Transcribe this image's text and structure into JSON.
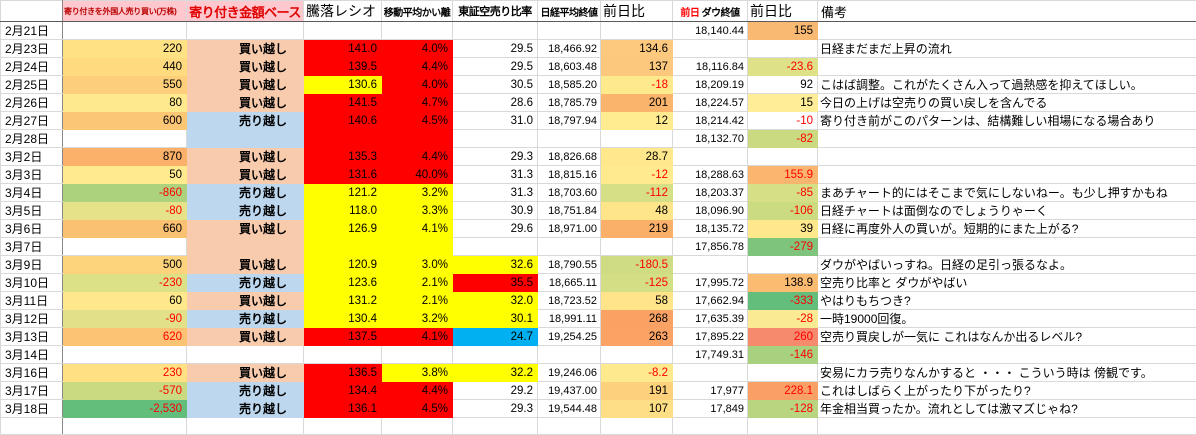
{
  "palette": {
    "cell_red": "#FF0000",
    "cell_yellow": "#FFFF00",
    "cell_cyan": "#00B0F0",
    "cell_peach": "#F8CBAD",
    "cell_blue": "#BDD7EE",
    "header_pink": "#FFC7CE",
    "negative_text": "#FF0000",
    "scale_green": "#63BE7B",
    "scale_orange": "#FBB169"
  },
  "header": {
    "col_foreign": "寄り付きを外国人売り買い(万株)",
    "col_amount_base": "寄り付き金額ベース",
    "col_ratio": "騰落レシオ",
    "col_ma_dev": "移動平均かい離",
    "col_short_ratio": "東証空売り比率",
    "col_nikkei_close": "日経平均終値",
    "col_nikkei_chg": "前日比",
    "col_dow_prev": "前日",
    "col_dow_close": "ダウ終値",
    "col_dow_chg": "前日比",
    "col_remarks": "備考"
  },
  "rows": [
    {
      "date": "2月21日",
      "foreign": {
        "v": "",
        "bg": "",
        "red": false
      },
      "side": {
        "v": "",
        "bg": ""
      },
      "ratio": {
        "v": "",
        "bg": ""
      },
      "ma": {
        "v": "",
        "bg": ""
      },
      "short": {
        "v": "",
        "bg": ""
      },
      "close": "",
      "chg": {
        "v": "",
        "bg": "",
        "red": false
      },
      "dow": "18,140.44",
      "dowchg": {
        "v": "155",
        "bg": "#FAB973",
        "red": false
      },
      "remark": ""
    },
    {
      "date": "2月23日",
      "foreign": {
        "v": "220",
        "bg": "#FFE284",
        "red": false
      },
      "side": {
        "v": "買い越し",
        "bg": "#F8CBAD"
      },
      "ratio": {
        "v": "141.0",
        "bg": "#FF0000"
      },
      "ma": {
        "v": "4.0%",
        "bg": "#FF0000"
      },
      "short": {
        "v": "29.5",
        "bg": ""
      },
      "close": "18,466.92",
      "chg": {
        "v": "134.6",
        "bg": "#FCC97E",
        "red": false
      },
      "dow": "",
      "dowchg": {
        "v": "",
        "bg": "",
        "red": false
      },
      "remark": "日経まだまだ上昇の流れ"
    },
    {
      "date": "2月24日",
      "foreign": {
        "v": "440",
        "bg": "#FFDA7E",
        "red": false
      },
      "side": {
        "v": "買い越し",
        "bg": "#F8CBAD"
      },
      "ratio": {
        "v": "139.5",
        "bg": "#FF0000"
      },
      "ma": {
        "v": "4.4%",
        "bg": "#FF0000"
      },
      "short": {
        "v": "29.5",
        "bg": ""
      },
      "close": "18,603.48",
      "chg": {
        "v": "137",
        "bg": "#FCC87D",
        "red": false
      },
      "dow": "18,116.84",
      "dowchg": {
        "v": "-23.6",
        "bg": "#DFE189",
        "red": true
      },
      "remark": ""
    },
    {
      "date": "2月25日",
      "foreign": {
        "v": "550",
        "bg": "#FECF7A",
        "red": false
      },
      "side": {
        "v": "買い越し",
        "bg": "#F8CBAD"
      },
      "ratio": {
        "v": "130.6",
        "bg": "#FFFF00"
      },
      "ma": {
        "v": "4.0%",
        "bg": "#FF0000"
      },
      "short": {
        "v": "30.5",
        "bg": ""
      },
      "close": "18,585.20",
      "chg": {
        "v": "-18",
        "bg": "#FFE98D",
        "red": true
      },
      "dow": "18,209.19",
      "dowchg": {
        "v": "92",
        "bg": "",
        "red": false
      },
      "remark": "こはば調整。これがたくさん入って過熱感を抑えてほしい。"
    },
    {
      "date": "2月26日",
      "foreign": {
        "v": "80",
        "bg": "#FFE98D",
        "red": false
      },
      "side": {
        "v": "買い越し",
        "bg": "#F8CBAD"
      },
      "ratio": {
        "v": "141.5",
        "bg": "#FF0000"
      },
      "ma": {
        "v": "4.7%",
        "bg": "#FF0000"
      },
      "short": {
        "v": "28.6",
        "bg": ""
      },
      "close": "18,785.79",
      "chg": {
        "v": "201",
        "bg": "#FBB46C",
        "red": false
      },
      "dow": "18,224.57",
      "dowchg": {
        "v": "15",
        "bg": "#FFEE97",
        "red": false
      },
      "remark": "今日の上げは空売りの買い戻しを含んでる"
    },
    {
      "date": "2月27日",
      "foreign": {
        "v": "600",
        "bg": "#FCC775",
        "red": false
      },
      "side": {
        "v": "売り越し",
        "bg": "#BDD7EE"
      },
      "ratio": {
        "v": "140.6",
        "bg": "#FF0000"
      },
      "ma": {
        "v": "4.5%",
        "bg": "#FF0000"
      },
      "short": {
        "v": "31.0",
        "bg": ""
      },
      "close": "18,797.94",
      "chg": {
        "v": "12",
        "bg": "#FFEC90",
        "red": false
      },
      "dow": "18,214.42",
      "dowchg": {
        "v": "-10",
        "bg": "",
        "red": true
      },
      "remark": "寄り付き前がこのパターンは、結構難しい相場になる場合あり"
    },
    {
      "date": "2月28日",
      "foreign": {
        "v": "",
        "bg": "",
        "red": false
      },
      "side": {
        "v": "",
        "bg": "#BDD7EE"
      },
      "ratio": {
        "v": "",
        "bg": "#FF0000"
      },
      "ma": {
        "v": "",
        "bg": "#FF0000"
      },
      "short": {
        "v": "",
        "bg": ""
      },
      "close": "",
      "chg": {
        "v": "",
        "bg": "",
        "red": false
      },
      "dow": "18,132.70",
      "dowchg": {
        "v": "-82",
        "bg": "#C9DA81",
        "red": true
      },
      "remark": ""
    },
    {
      "date": "3月2日",
      "foreign": {
        "v": "870",
        "bg": "#FBB169",
        "red": false
      },
      "side": {
        "v": "買い越し",
        "bg": "#F8CBAD"
      },
      "ratio": {
        "v": "135.3",
        "bg": "#FF0000"
      },
      "ma": {
        "v": "4.4%",
        "bg": "#FF0000"
      },
      "short": {
        "v": "29.3",
        "bg": ""
      },
      "close": "18,826.68",
      "chg": {
        "v": "28.7",
        "bg": "#FFE88C",
        "red": false
      },
      "dow": "",
      "dowchg": {
        "v": "",
        "bg": "",
        "red": false
      },
      "remark": ""
    },
    {
      "date": "3月3日",
      "foreign": {
        "v": "50",
        "bg": "#FFEA8E",
        "red": false
      },
      "side": {
        "v": "買い越し",
        "bg": "#F8CBAD"
      },
      "ratio": {
        "v": "131.6",
        "bg": "#FF0000"
      },
      "ma": {
        "v": "40.0%",
        "bg": "#FF0000"
      },
      "short": {
        "v": "31.3",
        "bg": ""
      },
      "close": "18,815.16",
      "chg": {
        "v": "-12",
        "bg": "#FFEA8E",
        "red": true
      },
      "dow": "18,288.63",
      "dowchg": {
        "v": "155.9",
        "bg": "#FAB56F",
        "red": true
      },
      "remark": ""
    },
    {
      "date": "3月4日",
      "foreign": {
        "v": "-860",
        "bg": "#ACD27E",
        "red": true
      },
      "side": {
        "v": "売り越し",
        "bg": "#BDD7EE"
      },
      "ratio": {
        "v": "121.2",
        "bg": "#FFFF00"
      },
      "ma": {
        "v": "3.2%",
        "bg": "#FFFF00"
      },
      "short": {
        "v": "31.3",
        "bg": ""
      },
      "close": "18,703.60",
      "chg": {
        "v": "-112",
        "bg": "#D7DF86",
        "red": true
      },
      "dow": "18,203.37",
      "dowchg": {
        "v": "-85",
        "bg": "#D6DE86",
        "red": true
      },
      "remark": "まあチャート的にはそこまで気にしないねー。も少し押すかもね"
    },
    {
      "date": "3月5日",
      "foreign": {
        "v": "-80",
        "bg": "#E5E28A",
        "red": true
      },
      "side": {
        "v": "売り越し",
        "bg": "#BDD7EE"
      },
      "ratio": {
        "v": "118.0",
        "bg": "#FFFF00"
      },
      "ma": {
        "v": "3.3%",
        "bg": "#FFFF00"
      },
      "short": {
        "v": "30.9",
        "bg": ""
      },
      "close": "18,751.84",
      "chg": {
        "v": "48",
        "bg": "#FFE58A",
        "red": false
      },
      "dow": "18,096.90",
      "dowchg": {
        "v": "-106",
        "bg": "#CBDB81",
        "red": true
      },
      "remark": "日経チャートは面倒なのでしょうりゃーく"
    },
    {
      "date": "3月6日",
      "foreign": {
        "v": "660",
        "bg": "#FBC172",
        "red": false
      },
      "side": {
        "v": "買い越し",
        "bg": "#F8CBAD"
      },
      "ratio": {
        "v": "126.9",
        "bg": "#FFFF00"
      },
      "ma": {
        "v": "4.1%",
        "bg": "#FFFF00"
      },
      "short": {
        "v": "29.6",
        "bg": ""
      },
      "close": "18,971.00",
      "chg": {
        "v": "219",
        "bg": "#FBB06A",
        "red": false
      },
      "dow": "18,135.72",
      "dowchg": {
        "v": "39",
        "bg": "#FFE78B",
        "red": false
      },
      "remark": "日経に再度外人の買いが。短期的にまた上がる?"
    },
    {
      "date": "3月7日",
      "foreign": {
        "v": "",
        "bg": "",
        "red": false
      },
      "side": {
        "v": "",
        "bg": "#F8CBAD"
      },
      "ratio": {
        "v": "",
        "bg": "#FFFF00"
      },
      "ma": {
        "v": "",
        "bg": "#FFFF00"
      },
      "short": {
        "v": "",
        "bg": ""
      },
      "close": "",
      "chg": {
        "v": "",
        "bg": "",
        "red": false
      },
      "dow": "17,856.78",
      "dowchg": {
        "v": "-279",
        "bg": "#7EC47C",
        "red": true
      },
      "remark": ""
    },
    {
      "date": "3月9日",
      "foreign": {
        "v": "500",
        "bg": "#FDD47C",
        "red": false
      },
      "side": {
        "v": "買い越し",
        "bg": "#F8CBAD"
      },
      "ratio": {
        "v": "120.9",
        "bg": "#FFFF00"
      },
      "ma": {
        "v": "3.0%",
        "bg": "#FFFF00"
      },
      "short": {
        "v": "32.6",
        "bg": "#FFFF00"
      },
      "close": "18,790.55",
      "chg": {
        "v": "-180.5",
        "bg": "#CFDC83",
        "red": true
      },
      "dow": "",
      "dowchg": {
        "v": "",
        "bg": "",
        "red": false
      },
      "remark": "ダウがやばいっすね。日経の足引っ張るなよ。"
    },
    {
      "date": "3月10日",
      "foreign": {
        "v": "-230",
        "bg": "#DCE087",
        "red": true
      },
      "side": {
        "v": "売り越し",
        "bg": "#BDD7EE"
      },
      "ratio": {
        "v": "123.6",
        "bg": "#FFFF00"
      },
      "ma": {
        "v": "2.1%",
        "bg": "#FFFF00"
      },
      "short": {
        "v": "35.5",
        "bg": "#FF0000"
      },
      "close": "18,665.11",
      "chg": {
        "v": "-125",
        "bg": "#D4DE85",
        "red": true
      },
      "dow": "17,995.72",
      "dowchg": {
        "v": "138.9",
        "bg": "#FBBB71",
        "red": false
      },
      "remark": "空売り比率と ダウがやばい"
    },
    {
      "date": "3月11日",
      "foreign": {
        "v": "60",
        "bg": "#FFE88B",
        "red": false
      },
      "side": {
        "v": "買い越し",
        "bg": "#F8CBAD"
      },
      "ratio": {
        "v": "131.2",
        "bg": "#FFFF00"
      },
      "ma": {
        "v": "2.1%",
        "bg": "#FFFF00"
      },
      "short": {
        "v": "32.0",
        "bg": "#FFFF00"
      },
      "close": "18,723.52",
      "chg": {
        "v": "58",
        "bg": "#FFE48A",
        "red": false
      },
      "dow": "17,662.94",
      "dowchg": {
        "v": "-333",
        "bg": "#63BE7B",
        "red": true
      },
      "remark": "やはりもちつき?"
    },
    {
      "date": "3月12日",
      "foreign": {
        "v": "-90",
        "bg": "#E2E189",
        "red": true
      },
      "side": {
        "v": "売り越し",
        "bg": "#BDD7EE"
      },
      "ratio": {
        "v": "130.4",
        "bg": "#FFFF00"
      },
      "ma": {
        "v": "3.2%",
        "bg": "#FFFF00"
      },
      "short": {
        "v": "30.1",
        "bg": "#FFFF00"
      },
      "close": "18,991.11",
      "chg": {
        "v": "268",
        "bg": "#FAA263",
        "red": false
      },
      "dow": "17,635.39",
      "dowchg": {
        "v": "-28",
        "bg": "#FAEA93",
        "red": true
      },
      "remark": "一時19000回復。"
    },
    {
      "date": "3月13日",
      "foreign": {
        "v": "620",
        "bg": "#FBC373",
        "red": true
      },
      "side": {
        "v": "買い越し",
        "bg": "#F8CBAD"
      },
      "ratio": {
        "v": "137.5",
        "bg": "#FF0000"
      },
      "ma": {
        "v": "4.1%",
        "bg": "#FF0000"
      },
      "short": {
        "v": "24.7",
        "bg": "#00B0F0"
      },
      "close": "19,254.25",
      "chg": {
        "v": "263",
        "bg": "#FAA364",
        "red": false
      },
      "dow": "17,895.22",
      "dowchg": {
        "v": "260",
        "bg": "#F58A6D",
        "red": true
      },
      "remark": "空売り買戻しが一気に これはなんか出るレベル?"
    },
    {
      "date": "3月14日",
      "foreign": {
        "v": "",
        "bg": "",
        "red": false
      },
      "side": {
        "v": "",
        "bg": ""
      },
      "ratio": {
        "v": "",
        "bg": ""
      },
      "ma": {
        "v": "",
        "bg": ""
      },
      "short": {
        "v": "",
        "bg": ""
      },
      "close": "",
      "chg": {
        "v": "",
        "bg": "",
        "red": false
      },
      "dow": "17,749.31",
      "dowchg": {
        "v": "-146",
        "bg": "#A7D07F",
        "red": true
      },
      "remark": ""
    },
    {
      "date": "3月16日",
      "foreign": {
        "v": "230",
        "bg": "#FFE183",
        "red": true
      },
      "side": {
        "v": "買い越し",
        "bg": "#F8CBAD"
      },
      "ratio": {
        "v": "136.5",
        "bg": "#FF0000"
      },
      "ma": {
        "v": "3.8%",
        "bg": "#FFFF00"
      },
      "short": {
        "v": "32.2",
        "bg": "#FFFF00"
      },
      "close": "19,246.06",
      "chg": {
        "v": "-8.2",
        "bg": "#FEE98D",
        "red": true
      },
      "dow": "",
      "dowchg": {
        "v": "",
        "bg": "",
        "red": false
      },
      "remark": "安易にカラ売りなんかすると ・・・ こういう時は 傍観です。"
    },
    {
      "date": "3月17日",
      "foreign": {
        "v": "-570",
        "bg": "#C9DA81",
        "red": true
      },
      "side": {
        "v": "売り越し",
        "bg": "#BDD7EE"
      },
      "ratio": {
        "v": "134.4",
        "bg": "#FF0000"
      },
      "ma": {
        "v": "4.4%",
        "bg": "#FF0000"
      },
      "short": {
        "v": "29.2",
        "bg": ""
      },
      "close": "19,437.00",
      "chg": {
        "v": "191",
        "bg": "#FDD17B",
        "red": false
      },
      "dow": "17,977",
      "dowchg": {
        "v": "228.1",
        "bg": "#F9A066",
        "red": true
      },
      "remark": "これはしばらく上がったり下がったり?"
    },
    {
      "date": "3月18日",
      "foreign": {
        "v": "-2,530",
        "bg": "#63BE7B",
        "red": true
      },
      "side": {
        "v": "売り越し",
        "bg": "#BDD7EE"
      },
      "ratio": {
        "v": "136.1",
        "bg": "#FF0000"
      },
      "ma": {
        "v": "4.5%",
        "bg": "#FF0000"
      },
      "short": {
        "v": "29.3",
        "bg": ""
      },
      "close": "19,544.48",
      "chg": {
        "v": "107",
        "bg": "#FEDF85",
        "red": false
      },
      "dow": "17,849",
      "dowchg": {
        "v": "-128",
        "bg": "#B9D580",
        "red": true
      },
      "remark": "年金相当買ったか。流れとしては激マズじゃね?"
    },
    {
      "date": "",
      "foreign": {
        "v": "",
        "bg": "",
        "red": false
      },
      "side": {
        "v": "",
        "bg": ""
      },
      "ratio": {
        "v": "",
        "bg": ""
      },
      "ma": {
        "v": "",
        "bg": ""
      },
      "short": {
        "v": "",
        "bg": ""
      },
      "close": "",
      "chg": {
        "v": "",
        "bg": "",
        "red": false
      },
      "dow": "",
      "dowchg": {
        "v": "",
        "bg": "",
        "red": false
      },
      "remark": ""
    }
  ]
}
